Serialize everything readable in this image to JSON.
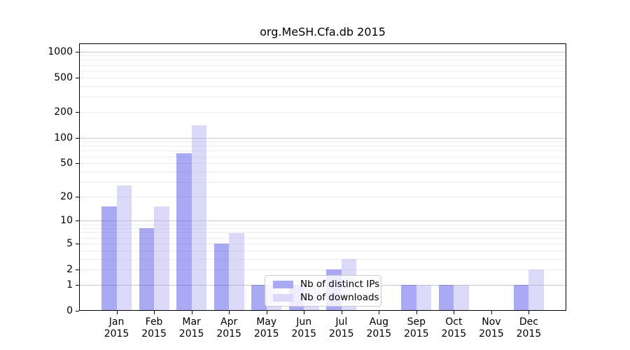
{
  "chart_data": {
    "type": "bar",
    "title": "org.MeSH.Cfa.db 2015",
    "year": "2015",
    "categories": [
      "Jan",
      "Feb",
      "Mar",
      "Apr",
      "May",
      "Jun",
      "Jul",
      "Aug",
      "Sep",
      "Oct",
      "Nov",
      "Dec"
    ],
    "series": [
      {
        "name": "Nb of distinct IPs",
        "color": "#aaaaf4",
        "values": [
          15,
          8,
          65,
          5,
          1,
          1,
          2,
          0,
          1,
          1,
          0,
          1
        ]
      },
      {
        "name": "Nb of downloads",
        "color": "#dadaf8",
        "values": [
          27,
          15,
          138,
          7,
          1,
          1,
          3,
          0,
          1,
          1,
          0,
          2
        ]
      }
    ],
    "y_axis": {
      "scale": "log1p",
      "ticks": [
        0,
        1,
        2,
        5,
        10,
        20,
        50,
        100,
        200,
        500,
        1000
      ],
      "max": 1240,
      "major_gridlines": [
        1,
        10,
        100,
        1000
      ]
    },
    "grid": {
      "major_color": "#c9c9c9",
      "minor_color": "#ededed"
    },
    "legend": {
      "position": "bottom-center"
    }
  }
}
